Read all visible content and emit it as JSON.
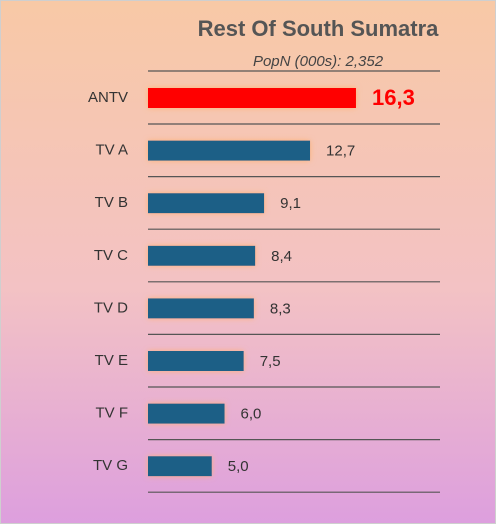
{
  "chart_data": {
    "type": "hbar",
    "title": "Rest Of South Sumatra",
    "subtitle": "PopN (000s): 2,352",
    "categories": [
      "ANTV",
      "TV A",
      "TV B",
      "TV C",
      "TV D",
      "TV E",
      "TV F",
      "TV G"
    ],
    "values": [
      16.3,
      12.7,
      9.1,
      8.4,
      8.3,
      7.5,
      6.0,
      5.0
    ],
    "value_labels": [
      "16,3",
      "12,7",
      "9,1",
      "8,4",
      "8,3",
      "7,5",
      "6,0",
      "5,0"
    ],
    "colors": [
      "#ff0000",
      "#1b5f86",
      "#1b5f86",
      "#1b5f86",
      "#1b5f86",
      "#1b5f86",
      "#1b5f86",
      "#1b5f86"
    ]
  }
}
